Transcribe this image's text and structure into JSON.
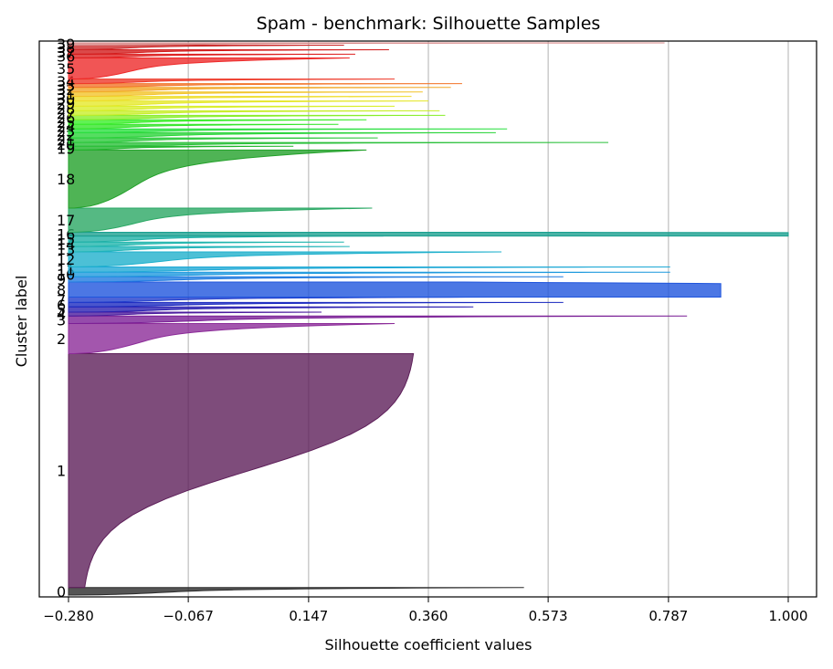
{
  "chart_data": {
    "type": "silhouette",
    "title": "Spam - benchmark: Silhouette Samples",
    "xlabel": "Silhouette coefficient values",
    "ylabel": "Cluster label",
    "xlim": [
      -0.28,
      1.05
    ],
    "xticks": [
      -0.28,
      -0.067,
      0.147,
      0.36,
      0.573,
      0.787,
      1.0
    ],
    "xtick_labels": [
      "−0.280",
      "−0.067",
      "0.147",
      "0.360",
      "0.573",
      "0.787",
      "1.000"
    ],
    "grid": "vertical",
    "clusters": [
      {
        "label": "0",
        "size": 10,
        "max": 0.53,
        "min": -0.28,
        "shape": "ramp",
        "color": "#2a2a2a"
      },
      {
        "label": "1",
        "size": 310,
        "max": 0.34,
        "min": -0.28,
        "shape": "sig",
        "color": "#5e1f5a"
      },
      {
        "label": "2",
        "size": 40,
        "max": 0.3,
        "min": -0.28,
        "shape": "ramp",
        "color": "#8c2c99"
      },
      {
        "label": "3",
        "size": 10,
        "max": 0.82,
        "min": -0.28,
        "shape": "ramp",
        "color": "#7a1f96"
      },
      {
        "label": "4",
        "size": 5,
        "max": 0.17,
        "min": -0.28,
        "shape": "ramp",
        "color": "#4b1b9e"
      },
      {
        "label": "5",
        "size": 7,
        "max": 0.44,
        "min": -0.28,
        "shape": "ramp",
        "color": "#2a1fb0"
      },
      {
        "label": "6",
        "size": 6,
        "max": 0.6,
        "min": -0.28,
        "shape": "ramp",
        "color": "#1b2ac0"
      },
      {
        "label": "7",
        "size": 7,
        "max": 0.5,
        "min": -0.28,
        "shape": "ramp",
        "color": "#1f3ccc"
      },
      {
        "label": "8",
        "size": 20,
        "max": 0.88,
        "min": -0.28,
        "shape": "flat",
        "color": "#1f55dd"
      },
      {
        "label": "9",
        "size": 7,
        "max": 0.6,
        "min": -0.28,
        "shape": "ramp",
        "color": "#1f7ae0"
      },
      {
        "label": "10",
        "size": 6,
        "max": 0.79,
        "min": -0.28,
        "shape": "ramp",
        "color": "#1f9ade"
      },
      {
        "label": "11",
        "size": 7,
        "max": 0.79,
        "min": -0.28,
        "shape": "ramp",
        "color": "#1fa9d6"
      },
      {
        "label": "12",
        "size": 20,
        "max": 0.49,
        "min": -0.28,
        "shape": "ramp",
        "color": "#1fb0cc"
      },
      {
        "label": "13",
        "size": 7,
        "max": 0.22,
        "min": -0.28,
        "shape": "ramp",
        "color": "#1fb4b8"
      },
      {
        "label": "14",
        "size": 6,
        "max": 0.21,
        "min": -0.28,
        "shape": "ramp",
        "color": "#1fb5ad"
      },
      {
        "label": "15",
        "size": 8,
        "max": 0.28,
        "min": -0.28,
        "shape": "ramp",
        "color": "#1fb0a6"
      },
      {
        "label": "16",
        "size": 5,
        "max": 1.0,
        "min": -0.28,
        "shape": "flat",
        "color": "#1aa090"
      },
      {
        "label": "17",
        "size": 32,
        "max": 0.26,
        "min": -0.28,
        "shape": "ramp",
        "color": "#2aa864"
      },
      {
        "label": "18",
        "size": 77,
        "max": 0.25,
        "min": -0.28,
        "shape": "ramp",
        "color": "#23a12a"
      },
      {
        "label": "19",
        "size": 5,
        "max": 0.12,
        "min": -0.28,
        "shape": "ramp",
        "color": "#1fb52a"
      },
      {
        "label": "20",
        "size": 5,
        "max": 0.68,
        "min": -0.28,
        "shape": "ramp",
        "color": "#2ac03a"
      },
      {
        "label": "21",
        "size": 6,
        "max": 0.27,
        "min": -0.28,
        "shape": "ramp",
        "color": "#2ac83a"
      },
      {
        "label": "22",
        "size": 7,
        "max": 0.48,
        "min": -0.28,
        "shape": "ramp",
        "color": "#2ad43a"
      },
      {
        "label": "23",
        "size": 5,
        "max": 0.5,
        "min": -0.28,
        "shape": "ramp",
        "color": "#2ae040"
      },
      {
        "label": "24",
        "size": 6,
        "max": 0.2,
        "min": -0.28,
        "shape": "ramp",
        "color": "#34e52a"
      },
      {
        "label": "25",
        "size": 6,
        "max": 0.25,
        "min": -0.28,
        "shape": "ramp",
        "color": "#3aee2a"
      },
      {
        "label": "26",
        "size": 6,
        "max": 0.39,
        "min": -0.28,
        "shape": "ramp",
        "color": "#88ee2a"
      },
      {
        "label": "27",
        "size": 6,
        "max": 0.38,
        "min": -0.28,
        "shape": "ramp",
        "color": "#c8ee2a"
      },
      {
        "label": "28",
        "size": 6,
        "max": 0.3,
        "min": -0.28,
        "shape": "ramp",
        "color": "#d9ee2a"
      },
      {
        "label": "29",
        "size": 7,
        "max": 0.36,
        "min": -0.28,
        "shape": "ramp",
        "color": "#e5e82a"
      },
      {
        "label": "30",
        "size": 6,
        "max": 0.33,
        "min": -0.28,
        "shape": "ramp",
        "color": "#eedd2a"
      },
      {
        "label": "31",
        "size": 6,
        "max": 0.35,
        "min": -0.28,
        "shape": "ramp",
        "color": "#f2c42a"
      },
      {
        "label": "32",
        "size": 6,
        "max": 0.4,
        "min": -0.28,
        "shape": "ramp",
        "color": "#f2a82a"
      },
      {
        "label": "33",
        "size": 5,
        "max": 0.42,
        "min": -0.28,
        "shape": "ramp",
        "color": "#f2762a"
      },
      {
        "label": "34",
        "size": 6,
        "max": 0.3,
        "min": -0.28,
        "shape": "ramp",
        "color": "#ee3a2a"
      },
      {
        "label": "35",
        "size": 28,
        "max": 0.22,
        "min": -0.28,
        "shape": "ramp",
        "color": "#ee2a2a"
      },
      {
        "label": "36",
        "size": 5,
        "max": 0.23,
        "min": -0.28,
        "shape": "ramp",
        "color": "#dd2020"
      },
      {
        "label": "37",
        "size": 6,
        "max": 0.29,
        "min": -0.28,
        "shape": "ramp",
        "color": "#d21c1c"
      },
      {
        "label": "38",
        "size": 6,
        "max": 0.21,
        "min": -0.28,
        "shape": "ramp",
        "color": "#cc2a2a"
      },
      {
        "label": "39",
        "size": 3,
        "max": 0.78,
        "min": -0.28,
        "shape": "ramp",
        "color": "#d98a8a"
      }
    ]
  }
}
